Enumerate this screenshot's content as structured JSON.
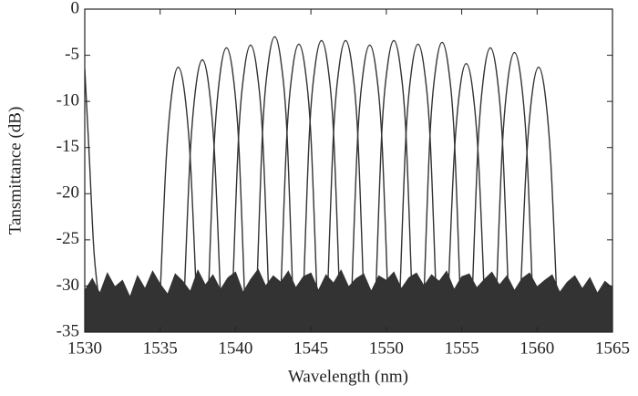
{
  "chart_data": {
    "type": "line",
    "xlabel": "Wavelength (nm)",
    "ylabel": "Tansmittance (dB)",
    "xlim": [
      1530,
      1565
    ],
    "xticks": [
      1530,
      1535,
      1540,
      1545,
      1550,
      1555,
      1560,
      1565
    ],
    "ylim": [
      -35,
      0
    ],
    "yticks": [
      0,
      -5,
      -10,
      -15,
      -20,
      -25,
      -30,
      -35
    ],
    "series": [
      {
        "color": "#333333",
        "style": "area",
        "x": [
          1530,
          1530.5,
          1531,
          1531.5,
          1532,
          1532.5,
          1533,
          1533.5,
          1534,
          1534.5,
          1535,
          1535.5,
          1536,
          1536.5,
          1537,
          1537.5,
          1538,
          1538.5,
          1539,
          1539.5,
          1540,
          1540.5,
          1541,
          1541.5,
          1542,
          1542.5,
          1543,
          1543.5,
          1544,
          1544.5,
          1545,
          1545.5,
          1546,
          1546.5,
          1547,
          1547.5,
          1548,
          1548.5,
          1549,
          1549.5,
          1550,
          1550.5,
          1551,
          1551.5,
          1552,
          1552.5,
          1553,
          1553.5,
          1554,
          1554.5,
          1555,
          1555.5,
          1556,
          1556.5,
          1557,
          1557.5,
          1558,
          1558.5,
          1559,
          1559.5,
          1560,
          1560.5,
          1561,
          1561.5,
          1562,
          1562.5,
          1563,
          1563.5,
          1564,
          1564.5,
          1565
        ],
        "values": [
          -30.5,
          -29.2,
          -30.8,
          -28.6,
          -30.1,
          -29.4,
          -31.2,
          -28.9,
          -30.3,
          -28.4,
          -29.8,
          -30.9,
          -28.7,
          -29.5,
          -30.6,
          -28.3,
          -29.9,
          -28.8,
          -30.4,
          -29.1,
          -28.5,
          -30.7,
          -29.3,
          -28.2,
          -30.0,
          -28.9,
          -29.6,
          -28.4,
          -30.2,
          -29.0,
          -28.6,
          -30.5,
          -28.8,
          -29.7,
          -28.3,
          -30.1,
          -29.2,
          -28.7,
          -30.6,
          -28.9,
          -29.4,
          -28.5,
          -30.3,
          -29.1,
          -28.6,
          -30.0,
          -28.8,
          -29.5,
          -28.4,
          -30.4,
          -29.0,
          -28.7,
          -30.2,
          -29.3,
          -28.5,
          -29.9,
          -28.9,
          -30.5,
          -29.2,
          -28.6,
          -30.1,
          -29.4,
          -28.8,
          -30.7,
          -29.6,
          -28.9,
          -30.3,
          -29.1,
          -30.8,
          -29.5,
          -30.2
        ]
      },
      {
        "color": "#333333",
        "x": [
          1530,
          1530.3,
          1530.6,
          1530.9
        ],
        "values": [
          -6.5,
          -16,
          -26,
          -31
        ]
      },
      {
        "color": "#333333",
        "x": [
          1535.0,
          1535.4,
          1535.8,
          1536.2,
          1536.6,
          1537.0,
          1537.4
        ],
        "values": [
          -31,
          -16.3,
          -8.8,
          -6.3,
          -8.8,
          -16.3,
          -31
        ]
      },
      {
        "color": "#333333",
        "x": [
          1536.6,
          1537.0,
          1537.4,
          1537.8,
          1538.2,
          1538.6,
          1539.0
        ],
        "values": [
          -31,
          -15.5,
          -8,
          -5.5,
          -8,
          -15.5,
          -31
        ]
      },
      {
        "color": "#333333",
        "x": [
          1538.2,
          1538.6,
          1539.0,
          1539.4,
          1539.8,
          1540.2,
          1540.6
        ],
        "values": [
          -31,
          -14.2,
          -6.7,
          -4.2,
          -6.7,
          -14.2,
          -31
        ]
      },
      {
        "color": "#333333",
        "x": [
          1539.8,
          1540.2,
          1540.6,
          1541.0,
          1541.4,
          1541.8,
          1542.2
        ],
        "values": [
          -31,
          -13.9,
          -6.4,
          -3.9,
          -6.4,
          -13.9,
          -31
        ]
      },
      {
        "color": "#333333",
        "x": [
          1541.4,
          1541.8,
          1542.2,
          1542.6,
          1543.0,
          1543.4,
          1543.8
        ],
        "values": [
          -31,
          -13,
          -5.5,
          -3,
          -5.5,
          -13,
          -31
        ]
      },
      {
        "color": "#333333",
        "x": [
          1543.0,
          1543.4,
          1543.8,
          1544.2,
          1544.6,
          1545.0,
          1545.4
        ],
        "values": [
          -31,
          -13.8,
          -6.3,
          -3.8,
          -6.3,
          -13.8,
          -31
        ]
      },
      {
        "color": "#333333",
        "x": [
          1544.5,
          1544.9,
          1545.3,
          1545.7,
          1546.1,
          1546.5,
          1546.9
        ],
        "values": [
          -31,
          -13.4,
          -5.9,
          -3.4,
          -5.9,
          -13.4,
          -31
        ]
      },
      {
        "color": "#333333",
        "x": [
          1546.1,
          1546.5,
          1546.9,
          1547.3,
          1547.7,
          1548.1,
          1548.5
        ],
        "values": [
          -31,
          -13.4,
          -5.9,
          -3.4,
          -5.9,
          -13.4,
          -31
        ]
      },
      {
        "color": "#333333",
        "x": [
          1547.7,
          1548.1,
          1548.5,
          1548.9,
          1549.3,
          1549.7,
          1550.1
        ],
        "values": [
          -31,
          -13.9,
          -6.4,
          -3.9,
          -6.4,
          -13.9,
          -31
        ]
      },
      {
        "color": "#333333",
        "x": [
          1549.3,
          1549.7,
          1550.1,
          1550.5,
          1550.9,
          1551.3,
          1551.7
        ],
        "values": [
          -31,
          -13.4,
          -5.9,
          -3.4,
          -5.9,
          -13.4,
          -31
        ]
      },
      {
        "color": "#333333",
        "x": [
          1550.9,
          1551.3,
          1551.7,
          1552.1,
          1552.5,
          1552.9,
          1553.3
        ],
        "values": [
          -31,
          -13.8,
          -6.3,
          -3.8,
          -6.3,
          -13.8,
          -31
        ]
      },
      {
        "color": "#333333",
        "x": [
          1552.5,
          1552.9,
          1553.3,
          1553.7,
          1554.1,
          1554.5,
          1554.9
        ],
        "values": [
          -31,
          -13.6,
          -6.1,
          -3.6,
          -6.1,
          -13.6,
          -31
        ]
      },
      {
        "color": "#333333",
        "x": [
          1554.1,
          1554.5,
          1554.9,
          1555.3,
          1555.7,
          1556.1,
          1556.5
        ],
        "values": [
          -31,
          -15.9,
          -8.4,
          -5.9,
          -8.4,
          -15.9,
          -31
        ]
      },
      {
        "color": "#333333",
        "x": [
          1555.7,
          1556.1,
          1556.5,
          1556.9,
          1557.3,
          1557.7,
          1558.1
        ],
        "values": [
          -31,
          -14.2,
          -6.7,
          -4.2,
          -6.7,
          -14.2,
          -31
        ]
      },
      {
        "color": "#333333",
        "x": [
          1557.3,
          1557.7,
          1558.1,
          1558.5,
          1558.9,
          1559.3,
          1559.7
        ],
        "values": [
          -31,
          -14.7,
          -7.2,
          -4.7,
          -7.2,
          -14.7,
          -31
        ]
      },
      {
        "color": "#333333",
        "x": [
          1558.9,
          1559.3,
          1559.7,
          1560.1,
          1560.5,
          1560.9,
          1561.3
        ],
        "values": [
          -31,
          -16.3,
          -8.8,
          -6.3,
          -8.8,
          -16.3,
          -31
        ]
      }
    ]
  }
}
